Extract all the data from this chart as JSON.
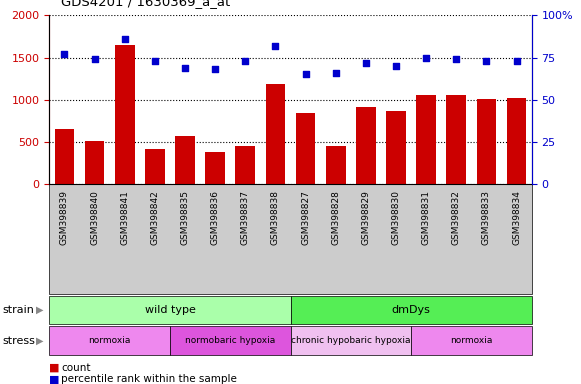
{
  "title": "GDS4201 / 1630369_a_at",
  "samples": [
    "GSM398839",
    "GSM398840",
    "GSM398841",
    "GSM398842",
    "GSM398835",
    "GSM398836",
    "GSM398837",
    "GSM398838",
    "GSM398827",
    "GSM398828",
    "GSM398829",
    "GSM398830",
    "GSM398831",
    "GSM398832",
    "GSM398833",
    "GSM398834"
  ],
  "counts": [
    650,
    510,
    1650,
    420,
    570,
    380,
    450,
    1190,
    840,
    450,
    920,
    870,
    1060,
    1060,
    1010,
    1020
  ],
  "percentiles": [
    77,
    74,
    86,
    73,
    69,
    68,
    73,
    82,
    65,
    66,
    72,
    70,
    75,
    74,
    73,
    73
  ],
  "bar_color": "#cc0000",
  "dot_color": "#0000cc",
  "ylim_left": [
    0,
    2000
  ],
  "ylim_right": [
    0,
    100
  ],
  "yticks_left": [
    0,
    500,
    1000,
    1500,
    2000
  ],
  "ytick_labels_left": [
    "0",
    "500",
    "1000",
    "1500",
    "2000"
  ],
  "yticks_right": [
    0,
    25,
    50,
    75,
    100
  ],
  "ytick_labels_right": [
    "0",
    "25",
    "50",
    "75",
    "100%"
  ],
  "strain_groups": [
    {
      "label": "wild type",
      "start": 0,
      "end": 8,
      "color": "#aaffaa"
    },
    {
      "label": "dmDys",
      "start": 8,
      "end": 16,
      "color": "#55ee55"
    }
  ],
  "stress_groups": [
    {
      "label": "normoxia",
      "start": 0,
      "end": 4,
      "color": "#ee88ee"
    },
    {
      "label": "normobaric hypoxia",
      "start": 4,
      "end": 8,
      "color": "#dd55dd"
    },
    {
      "label": "chronic hypobaric hypoxia",
      "start": 8,
      "end": 12,
      "color": "#f0c0f0"
    },
    {
      "label": "normoxia",
      "start": 12,
      "end": 16,
      "color": "#ee88ee"
    }
  ],
  "strain_label": "strain",
  "stress_label": "stress",
  "legend_count_label": "count",
  "legend_pct_label": "percentile rank within the sample",
  "bg_color": "#ffffff",
  "tick_label_color_left": "#cc0000",
  "tick_label_color_right": "#0000cc",
  "xlabel_bg_color": "#cccccc"
}
